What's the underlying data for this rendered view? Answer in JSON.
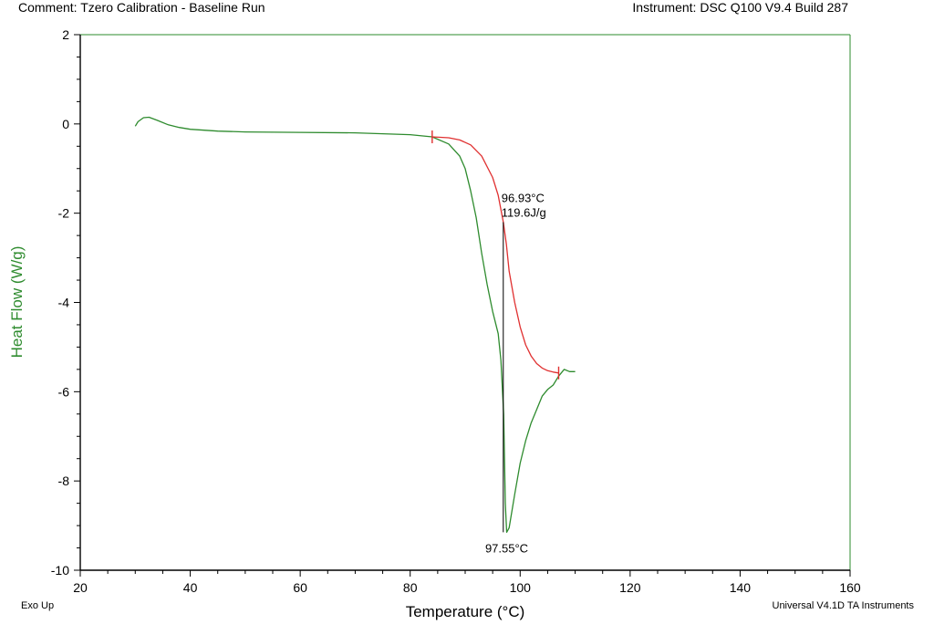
{
  "header": {
    "comment": "Comment: Tzero Calibration - Baseline Run",
    "instrument": "Instrument: DSC Q100 V9.4 Build 287"
  },
  "footer": {
    "exo_up": "Exo Up",
    "software": "Universal V4.1D TA Instruments"
  },
  "colors": {
    "curve": "#2e8b2e",
    "integration": "#e03030",
    "axis_label": "#2e8b2e",
    "frame": "#000000"
  },
  "chart_data": {
    "type": "line",
    "xlabel": "Temperature (°C)",
    "ylabel": "Heat Flow (W/g)",
    "xlim": [
      20,
      160
    ],
    "ylim": [
      -10,
      2
    ],
    "xticks": [
      20,
      40,
      60,
      80,
      100,
      120,
      140,
      160
    ],
    "yticks": [
      -10,
      -8,
      -6,
      -4,
      -2,
      0,
      2
    ],
    "grid": false,
    "series": [
      {
        "name": "",
        "color": "#2e8b2e",
        "x": [
          30,
          30.5,
          31.5,
          32.5,
          34,
          36,
          38,
          40,
          45,
          50,
          60,
          70,
          80,
          84,
          87,
          89,
          90,
          91,
          92,
          93,
          94,
          95,
          96,
          96.5,
          97,
          97.3,
          97.55,
          98,
          99,
          100,
          101,
          102,
          103,
          104,
          105,
          106,
          107,
          108,
          109,
          110
        ],
        "y": [
          -0.05,
          0.05,
          0.14,
          0.15,
          0.08,
          -0.02,
          -0.08,
          -0.12,
          -0.16,
          -0.18,
          -0.19,
          -0.2,
          -0.24,
          -0.29,
          -0.45,
          -0.72,
          -1.0,
          -1.5,
          -2.1,
          -2.9,
          -3.6,
          -4.2,
          -4.7,
          -5.3,
          -6.5,
          -8.5,
          -9.15,
          -9.05,
          -8.3,
          -7.6,
          -7.1,
          -6.7,
          -6.4,
          -6.1,
          -5.95,
          -5.85,
          -5.65,
          -5.5,
          -5.55,
          -5.55
        ]
      },
      {
        "name": "",
        "color": "#e03030",
        "x": [
          84,
          87,
          89,
          91,
          93,
          95,
          96,
          96.93,
          97.5,
          98,
          99,
          100,
          101,
          102,
          103,
          104,
          105,
          106,
          107
        ],
        "y": [
          -0.29,
          -0.31,
          -0.36,
          -0.47,
          -0.72,
          -1.2,
          -1.6,
          -2.2,
          -2.7,
          -3.3,
          -4.0,
          -4.55,
          -4.95,
          -5.2,
          -5.37,
          -5.47,
          -5.53,
          -5.56,
          -5.58
        ]
      }
    ],
    "markers": [
      {
        "x": 84,
        "y": -0.29,
        "color": "#e03030"
      },
      {
        "x": 107,
        "y": -5.58,
        "color": "#e03030"
      }
    ],
    "annotations": [
      {
        "x": 96.93,
        "text": "96.93°C",
        "anchor_y": -2.2,
        "line_to_y": -9.15
      },
      {
        "x": 97.55,
        "text": "97.55°C"
      }
    ],
    "annotation_extra": "119.6J/g"
  }
}
